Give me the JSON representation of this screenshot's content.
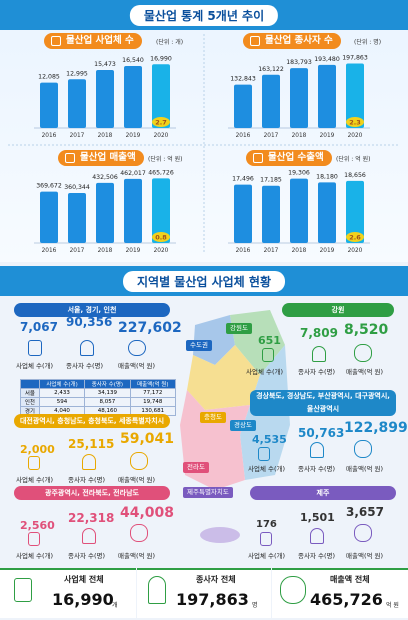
{
  "top": {
    "title": "물산업 통계 5개년 추이"
  },
  "chart_data": [
    {
      "type": "bar",
      "title": "물산업 사업체 수",
      "unit": "(단위 : 개)",
      "categories": [
        "2016",
        "2017",
        "2018",
        "2019",
        "2020"
      ],
      "values": [
        12085,
        12995,
        15473,
        16540,
        16990
      ],
      "value_labels": [
        "12,085",
        "12,995",
        "15,473",
        "16,540",
        "16,990"
      ],
      "growth": "2.7",
      "ylim": [
        0,
        20000
      ]
    },
    {
      "type": "bar",
      "title": "물산업 종사자 수",
      "unit": "(단위 : 명)",
      "categories": [
        "2016",
        "2017",
        "2018",
        "2019",
        "2020"
      ],
      "values": [
        132843,
        163122,
        183793,
        193480,
        197863
      ],
      "value_labels": [
        "132,843",
        "163,122",
        "183,793",
        "193,480",
        "197,863"
      ],
      "growth": "2.3",
      "ylim": [
        0,
        230000
      ]
    },
    {
      "type": "bar",
      "title": "물산업 매출액",
      "unit": "(단위 : 억 원)",
      "categories": [
        "2016",
        "2017",
        "2018",
        "2019",
        "2020"
      ],
      "values": [
        369672,
        360344,
        432506,
        462017,
        465726
      ],
      "value_labels": [
        "369,672",
        "360,344",
        "432,506",
        "462,017",
        "465,726"
      ],
      "growth": "0.8",
      "ylim": [
        0,
        540000
      ]
    },
    {
      "type": "bar",
      "title": "물산업 수출액",
      "unit": "(단위 : 억 원)",
      "categories": [
        "2016",
        "2017",
        "2018",
        "2019",
        "2020"
      ],
      "values": [
        17496,
        17185,
        19306,
        18180,
        18656
      ],
      "value_labels": [
        "17,496",
        "17,185",
        "19,306",
        "18,180",
        "18,656"
      ],
      "growth": "2.6",
      "ylim": [
        0,
        22500
      ]
    }
  ],
  "regional": {
    "title": "지역별 물산업 사업체 현황",
    "map_labels": {
      "capital": "수도권",
      "gangwon": "강원도",
      "chungcheong": "충청도",
      "gyeongsang": "경상도",
      "jeolla": "전라도",
      "jeju": "제주특별자치도"
    },
    "labels": {
      "biz": "사업체 수(개)",
      "emp": "종사자 수(명)",
      "sales": "매출액(억 원)"
    },
    "seoul": {
      "header": "서울, 경기, 인천",
      "biz": "7,067",
      "emp": "90,356",
      "sales": "227,602",
      "table": {
        "cols": [
          "",
          "사업체 수(개)",
          "종사자 수(명)",
          "매출액(억 원)"
        ],
        "rows": [
          [
            "서울",
            "2,433",
            "34,139",
            "77,172"
          ],
          [
            "인천",
            "594",
            "8,057",
            "19,748"
          ],
          [
            "경기",
            "4,040",
            "48,160",
            "130,681"
          ]
        ]
      }
    },
    "gangwon": {
      "header": "강원",
      "biz": "651",
      "emp": "7,809",
      "sales": "8,520"
    },
    "chung": {
      "header": "대전광역시, 충청남도, 충청북도, 세종특별자치시",
      "biz": "2,000",
      "emp": "25,115",
      "sales": "59,041"
    },
    "gyeong": {
      "header": "경상북도, 경상남도, 부산광역시, 대구광역시, 울산광역시",
      "biz": "4,535",
      "emp": "50,763",
      "sales": "122,899"
    },
    "jeolla": {
      "header": "광주광역시, 전라북도, 전라남도",
      "biz": "2,560",
      "emp": "22,318",
      "sales": "44,008"
    },
    "jeju": {
      "header": "제주",
      "biz": "176",
      "emp": "1,501",
      "sales": "3,657"
    }
  },
  "totals": {
    "biz": {
      "label": "사업체 전체",
      "value": "16,990",
      "unit": "개"
    },
    "emp": {
      "label": "종사자 전체",
      "value": "197,863",
      "unit": "명"
    },
    "sales": {
      "label": "매출액 전체",
      "value": "465,726",
      "unit": "억 원"
    }
  },
  "colors": {
    "bar": "#1e8ee0",
    "highlight": "#19b2e8",
    "growth": "#f2d21b",
    "pill": "#f28b1e",
    "seoul": "#1d67c0",
    "gangwon": "#2f9e44",
    "chung": "#e9a800",
    "gyeong": "#1e88c8",
    "jeolla": "#e0507a",
    "jeju": "#7a5bbf"
  }
}
